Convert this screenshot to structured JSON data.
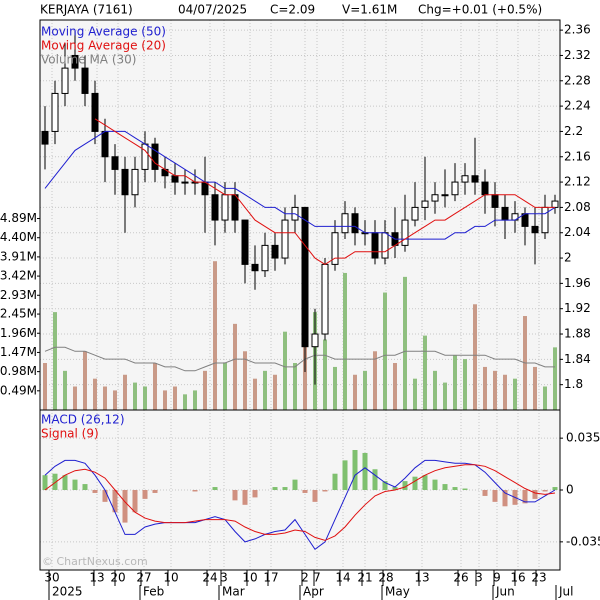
{
  "chart_data": {
    "type": "candlestick",
    "header": [
      "KERJAYA (7161)",
      "04/07/2025",
      "C=2.09",
      "V=1.61M",
      "Chg=+0.01 (+0.5%)"
    ],
    "watermark": "© ChartNexus.com",
    "xlim": [
      -0.5,
      51.5
    ],
    "xticks": [
      {
        "value": 0.7,
        "label": "30"
      },
      {
        "value": 5.2,
        "label": "13"
      },
      {
        "value": 7.3,
        "label": "20"
      },
      {
        "value": 9.9,
        "label": "27"
      },
      {
        "value": 12.6,
        "label": "10"
      },
      {
        "value": 16.5,
        "label": "24"
      },
      {
        "value": 17.9,
        "label": "3"
      },
      {
        "value": 20.5,
        "label": "10"
      },
      {
        "value": 22.6,
        "label": "17"
      },
      {
        "value": 26,
        "label": "2"
      },
      {
        "value": 27.2,
        "label": "7"
      },
      {
        "value": 29.8,
        "label": "14"
      },
      {
        "value": 32,
        "label": "21"
      },
      {
        "value": 34.1,
        "label": "28"
      },
      {
        "value": 37.7,
        "label": "13"
      },
      {
        "value": 41.6,
        "label": "26"
      },
      {
        "value": 43.4,
        "label": "3"
      },
      {
        "value": 45.2,
        "label": "9"
      },
      {
        "value": 47.3,
        "label": "16"
      },
      {
        "value": 49.4,
        "label": "23"
      }
    ],
    "month_ticks": [
      {
        "value": 0.7,
        "label": "2025"
      },
      {
        "value": 9.8,
        "label": "Feb"
      },
      {
        "value": 17.7,
        "label": "Mar"
      },
      {
        "value": 25.8,
        "label": "Apr"
      },
      {
        "value": 34,
        "label": "May"
      },
      {
        "value": 45.1,
        "label": "Jun"
      },
      {
        "value": 51.4,
        "label": "Jul"
      }
    ],
    "up_color": "#ffffff",
    "down_color": "#000000",
    "open": [
      2.2,
      2.2,
      2.26,
      2.32,
      2.3,
      2.26,
      2.2,
      2.16,
      2.14,
      2.1,
      2.14,
      2.18,
      2.14,
      2.13,
      2.12,
      2.12,
      2.12,
      2.1,
      2.06,
      2.1,
      2.06,
      1.99,
      1.98,
      2.02,
      2.0,
      2.06,
      2.08,
      1.86,
      1.88,
      1.99,
      2.04,
      2.07,
      2.04,
      2.04,
      2.0,
      2.04,
      2.02,
      2.06,
      2.08,
      2.09,
      2.1,
      2.1,
      2.12,
      2.13,
      2.12,
      2.1,
      2.08,
      2.06,
      2.07,
      2.05,
      2.04,
      2.08
    ],
    "high": [
      2.24,
      2.28,
      2.34,
      2.36,
      2.32,
      2.28,
      2.22,
      2.18,
      2.16,
      2.16,
      2.2,
      2.19,
      2.16,
      2.15,
      2.14,
      2.14,
      2.16,
      2.12,
      2.12,
      2.12,
      2.06,
      2.02,
      2.04,
      2.04,
      2.08,
      2.1,
      2.08,
      1.92,
      2.0,
      2.06,
      2.09,
      2.08,
      2.06,
      2.06,
      2.06,
      2.08,
      2.1,
      2.12,
      2.16,
      2.12,
      2.14,
      2.15,
      2.15,
      2.19,
      2.14,
      2.12,
      2.1,
      2.09,
      2.08,
      2.08,
      2.1,
      2.1
    ],
    "low": [
      2.14,
      2.18,
      2.24,
      2.28,
      2.24,
      2.18,
      2.12,
      2.1,
      2.04,
      2.08,
      2.12,
      2.12,
      2.11,
      2.1,
      2.1,
      2.1,
      2.04,
      2.02,
      2.04,
      2.04,
      1.96,
      1.95,
      1.97,
      1.98,
      1.99,
      2.04,
      1.82,
      1.8,
      1.87,
      1.98,
      2.03,
      2.02,
      2.02,
      1.99,
      1.99,
      2.0,
      2.01,
      2.05,
      2.06,
      2.07,
      2.08,
      2.09,
      2.1,
      2.1,
      2.07,
      2.05,
      2.03,
      2.04,
      2.02,
      1.99,
      2.03,
      2.07
    ],
    "close": [
      2.18,
      2.26,
      2.3,
      2.3,
      2.26,
      2.2,
      2.16,
      2.14,
      2.1,
      2.14,
      2.18,
      2.14,
      2.13,
      2.12,
      2.12,
      2.12,
      2.1,
      2.06,
      2.1,
      2.06,
      1.99,
      1.98,
      2.02,
      2.0,
      2.06,
      2.08,
      1.86,
      1.88,
      1.99,
      2.04,
      2.07,
      2.04,
      2.04,
      2.0,
      2.04,
      2.02,
      2.06,
      2.08,
      2.09,
      2.1,
      2.1,
      2.12,
      2.13,
      2.12,
      2.1,
      2.08,
      2.06,
      2.07,
      2.05,
      2.04,
      2.08,
      2.09
    ],
    "ylim": [
      1.76,
      2.376
    ],
    "yticks": [
      1.8,
      1.84,
      1.88,
      1.92,
      1.96,
      2,
      2.04,
      2.08,
      2.12,
      2.16,
      2.2,
      2.24,
      2.28,
      2.32,
      2.36
    ],
    "series": [
      {
        "name": "Moving Average (50)",
        "color": "#1f1fd0",
        "values": [
          2.11,
          2.13,
          2.15,
          2.17,
          2.18,
          2.19,
          2.2,
          2.2,
          2.2,
          2.19,
          2.18,
          2.17,
          2.16,
          2.15,
          2.14,
          2.13,
          2.12,
          2.12,
          2.11,
          2.11,
          2.1,
          2.09,
          2.08,
          2.08,
          2.07,
          2.07,
          2.06,
          2.05,
          2.05,
          2.05,
          2.05,
          2.05,
          2.04,
          2.04,
          2.04,
          2.03,
          2.03,
          2.03,
          2.03,
          2.03,
          2.03,
          2.04,
          2.04,
          2.05,
          2.05,
          2.06,
          2.06,
          2.06,
          2.07,
          2.07,
          2.07,
          2.08
        ]
      },
      {
        "name": "Moving Average (20)",
        "color": "#e01010",
        "values": [
          null,
          null,
          null,
          null,
          null,
          2.22,
          2.21,
          2.2,
          2.19,
          2.18,
          2.17,
          2.15,
          2.14,
          2.13,
          2.13,
          2.12,
          2.12,
          2.11,
          2.1,
          2.1,
          2.08,
          2.06,
          2.05,
          2.04,
          2.04,
          2.04,
          2.02,
          2.0,
          1.99,
          2.0,
          2.0,
          2.01,
          2.01,
          2.01,
          2.01,
          2.02,
          2.03,
          2.04,
          2.05,
          2.06,
          2.06,
          2.07,
          2.08,
          2.09,
          2.1,
          2.1,
          2.1,
          2.1,
          2.09,
          2.08,
          2.08,
          2.08
        ]
      }
    ],
    "volume": {
      "values": [
        1.2,
        2.5,
        1.0,
        0.6,
        1.5,
        0.8,
        0.6,
        0.5,
        0.9,
        0.7,
        0.6,
        1.2,
        0.5,
        0.6,
        0.4,
        0.5,
        1.0,
        3.8,
        1.2,
        2.2,
        1.5,
        0.8,
        1.0,
        0.9,
        2.0,
        1.2,
        4.5,
        2.5,
        1.8,
        1.1,
        3.5,
        0.9,
        1.0,
        1.5,
        3.0,
        1.2,
        3.4,
        0.8,
        1.9,
        1.0,
        0.7,
        1.4,
        1.3,
        2.7,
        1.1,
        1.0,
        0.9,
        0.8,
        2.4,
        1.1,
        0.6,
        1.6
      ],
      "up_color": "#8fbf7f",
      "down_color": "#c99a88",
      "ylim": [
        0,
        9.96
      ],
      "yticks": [
        {
          "value": 0.49,
          "label": "0.49M"
        },
        {
          "value": 0.98,
          "label": "0.98M"
        },
        {
          "value": 1.47,
          "label": "1.47M"
        },
        {
          "value": 1.96,
          "label": "1.96M"
        },
        {
          "value": 2.45,
          "label": "2.45M"
        },
        {
          "value": 2.93,
          "label": "2.93M"
        },
        {
          "value": 3.42,
          "label": "3.42M"
        },
        {
          "value": 3.91,
          "label": "3.91M"
        },
        {
          "value": 4.4,
          "label": "4.40M"
        },
        {
          "value": 4.89,
          "label": "4.89M"
        }
      ],
      "series": [
        {
          "name": "Volume MA (30)",
          "color": "#808080",
          "values": [
            1.5,
            1.6,
            1.6,
            1.5,
            1.5,
            1.4,
            1.3,
            1.3,
            1.3,
            1.2,
            1.2,
            1.2,
            1.1,
            1.1,
            1.0,
            1.0,
            1.1,
            1.2,
            1.2,
            1.3,
            1.3,
            1.2,
            1.2,
            1.2,
            1.1,
            1.1,
            1.3,
            1.4,
            1.4,
            1.3,
            1.3,
            1.3,
            1.3,
            1.3,
            1.4,
            1.4,
            1.5,
            1.5,
            1.5,
            1.5,
            1.4,
            1.4,
            1.4,
            1.4,
            1.4,
            1.3,
            1.3,
            1.3,
            1.2,
            1.2,
            1.1,
            1.1
          ]
        }
      ]
    },
    "macd": {
      "type": "line",
      "ylim": [
        -0.054,
        0.054
      ],
      "yticks": [
        0.035,
        0,
        -0.035
      ],
      "hist_up_color": "#7fc06f",
      "hist_down_color": "#d09080",
      "histogram": [
        0.01,
        0.011,
        0.01,
        0.007,
        0.004,
        -0.002,
        -0.008,
        -0.015,
        -0.022,
        -0.015,
        -0.006,
        -0.002,
        0.0,
        0.0,
        0.0,
        -0.001,
        0.0,
        0.002,
        0.0,
        -0.007,
        -0.01,
        -0.005,
        0.0,
        0.002,
        0.002,
        0.007,
        -0.002,
        -0.008,
        -0.001,
        0.011,
        0.02,
        0.027,
        0.025,
        0.014,
        0.006,
        0.002,
        0.006,
        0.009,
        0.01,
        0.007,
        0.004,
        0.002,
        0.001,
        0.0,
        -0.004,
        -0.008,
        -0.011,
        -0.01,
        -0.009,
        -0.006,
        -0.001,
        0.002
      ],
      "series": [
        {
          "name": "MACD (26,12)",
          "color": "#1f1fd0",
          "values": [
            0.01,
            0.016,
            0.02,
            0.02,
            0.018,
            0.01,
            0.0,
            -0.015,
            -0.03,
            -0.03,
            -0.025,
            -0.023,
            -0.022,
            -0.022,
            -0.022,
            -0.022,
            -0.02,
            -0.018,
            -0.02,
            -0.028,
            -0.035,
            -0.033,
            -0.03,
            -0.028,
            -0.027,
            -0.02,
            -0.03,
            -0.04,
            -0.035,
            -0.02,
            -0.005,
            0.01,
            0.015,
            0.01,
            0.005,
            0.002,
            0.008,
            0.015,
            0.02,
            0.02,
            0.019,
            0.018,
            0.018,
            0.017,
            0.012,
            0.005,
            -0.002,
            -0.005,
            -0.008,
            -0.008,
            -0.004,
            0.0
          ]
        },
        {
          "name": "Signal (9)",
          "color": "#e01010",
          "values": [
            0.0,
            0.005,
            0.01,
            0.013,
            0.014,
            0.012,
            0.008,
            0.0,
            -0.008,
            -0.015,
            -0.019,
            -0.021,
            -0.022,
            -0.022,
            -0.022,
            -0.021,
            -0.02,
            -0.02,
            -0.02,
            -0.021,
            -0.025,
            -0.028,
            -0.03,
            -0.03,
            -0.029,
            -0.027,
            -0.028,
            -0.032,
            -0.034,
            -0.031,
            -0.025,
            -0.017,
            -0.01,
            -0.004,
            -0.001,
            0.0,
            0.002,
            0.006,
            0.01,
            0.013,
            0.015,
            0.016,
            0.017,
            0.017,
            0.016,
            0.013,
            0.009,
            0.005,
            0.001,
            -0.002,
            -0.003,
            -0.002
          ]
        }
      ]
    }
  }
}
